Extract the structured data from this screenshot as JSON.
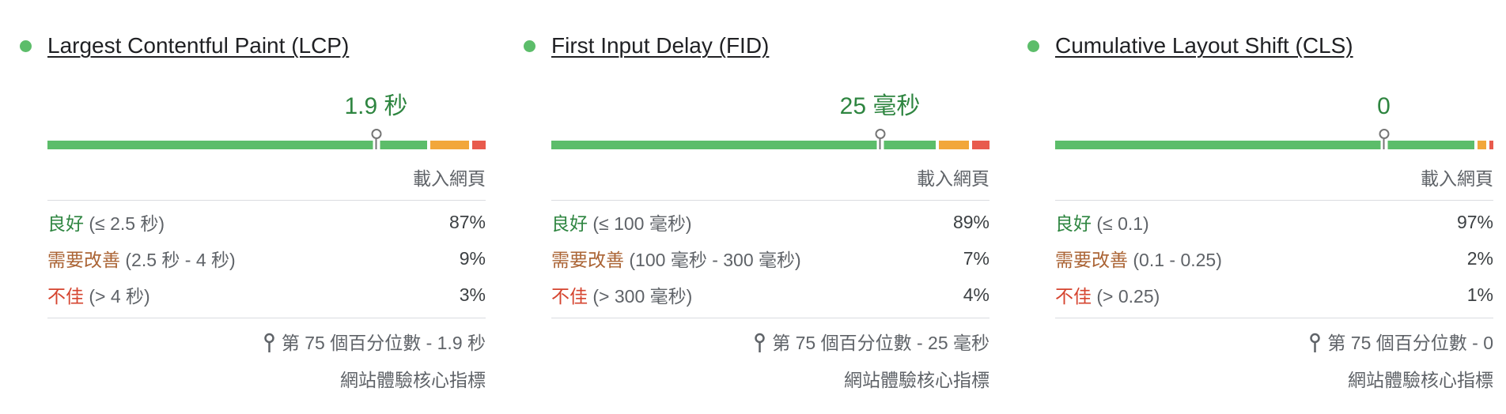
{
  "colors": {
    "good_bar": "#5cbd6a",
    "needs_improvement_bar": "#f2a73b",
    "poor_bar": "#e85a4d",
    "good_text": "#2e8540",
    "needs_improvement_text": "#ab6435",
    "poor_text": "#d5442f",
    "value_text": "#2e8540",
    "title_text": "#202124",
    "muted_text": "#5f6368",
    "percent_text": "#3c4043",
    "divider": "#dadce0",
    "marker": "#757575"
  },
  "metrics": [
    {
      "id": "lcp",
      "title": "Largest Contentful Paint (LCP)",
      "value": "1.9 秒",
      "percentile_position_pct": 75,
      "column_header": "載入網頁",
      "rows": [
        {
          "status": "good",
          "term": "良好",
          "threshold": "(≤ 2.5 秒)",
          "value": "87%"
        },
        {
          "status": "needs-improvement",
          "term": "需要改善",
          "threshold": "(2.5 秒 - 4 秒)",
          "value": "9%"
        },
        {
          "status": "poor",
          "term": "不佳",
          "threshold": "(> 4 秒)",
          "value": "3%"
        }
      ],
      "distribution": {
        "good": 87,
        "needs_improvement": 9,
        "poor": 3
      },
      "percentile_note": "第 75 個百分位數 - 1.9 秒",
      "category_label": "網站體驗核心指標"
    },
    {
      "id": "fid",
      "title": "First Input Delay (FID)",
      "value": "25 毫秒",
      "percentile_position_pct": 75,
      "column_header": "載入網頁",
      "rows": [
        {
          "status": "good",
          "term": "良好",
          "threshold": "(≤ 100 毫秒)",
          "value": "89%"
        },
        {
          "status": "needs-improvement",
          "term": "需要改善",
          "threshold": "(100 毫秒 - 300 毫秒)",
          "value": "7%"
        },
        {
          "status": "poor",
          "term": "不佳",
          "threshold": "(> 300 毫秒)",
          "value": "4%"
        }
      ],
      "distribution": {
        "good": 89,
        "needs_improvement": 7,
        "poor": 4
      },
      "percentile_note": "第 75 個百分位數 - 25 毫秒",
      "category_label": "網站體驗核心指標"
    },
    {
      "id": "cls",
      "title": "Cumulative Layout Shift (CLS)",
      "value": "0",
      "percentile_position_pct": 75,
      "column_header": "載入網頁",
      "rows": [
        {
          "status": "good",
          "term": "良好",
          "threshold": "(≤ 0.1)",
          "value": "97%"
        },
        {
          "status": "needs-improvement",
          "term": "需要改善",
          "threshold": "(0.1 - 0.25)",
          "value": "2%"
        },
        {
          "status": "poor",
          "term": "不佳",
          "threshold": "(> 0.25)",
          "value": "1%"
        }
      ],
      "distribution": {
        "good": 97,
        "needs_improvement": 2,
        "poor": 1
      },
      "percentile_note": "第 75 個百分位數 - 0",
      "category_label": "網站體驗核心指標"
    }
  ]
}
